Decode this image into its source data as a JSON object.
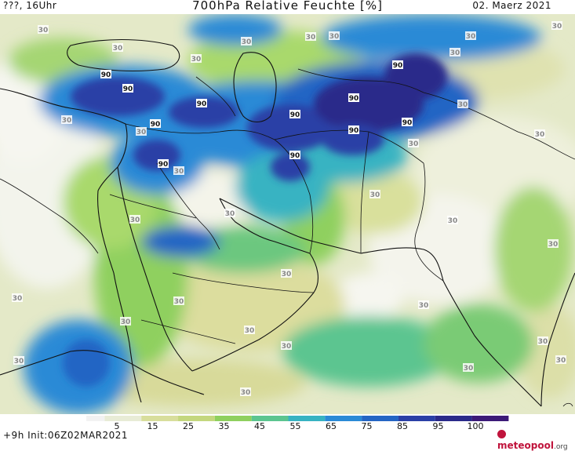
{
  "header": {
    "left": "???, 16Uhr",
    "title": "700hPa Relative Feuchte [%]",
    "right": "02. Maerz 2021"
  },
  "map": {
    "contour_labels": [
      "30",
      "30",
      "30",
      "30",
      "30",
      "30",
      "30",
      "30",
      "30",
      "30",
      "30",
      "30",
      "30",
      "30",
      "30",
      "30",
      "30",
      "30",
      "30",
      "30",
      "30",
      "30",
      "30",
      "30",
      "30",
      "30",
      "30",
      "30",
      "30",
      "30",
      "30",
      "30",
      "90",
      "90",
      "90",
      "90",
      "90",
      "90",
      "90",
      "90",
      "90",
      "90",
      "90",
      "90",
      "90"
    ]
  },
  "colorbar": {
    "tick_labels": [
      "5",
      "15",
      "25",
      "35",
      "45",
      "55",
      "65",
      "75",
      "85",
      "95",
      "100"
    ],
    "colors": [
      "#f2f2f2",
      "#e8ecd6",
      "#d8de9c",
      "#c4d77e",
      "#8fd05e",
      "#5cc590",
      "#37b3c2",
      "#2a8ad6",
      "#2465c4",
      "#2a3fa6",
      "#2a2a8a",
      "#3c1a78"
    ]
  },
  "footer": {
    "init": "+9h  Init:06Z02MAR2021",
    "brand": "meteopool",
    "brand_suffix": ".org"
  }
}
